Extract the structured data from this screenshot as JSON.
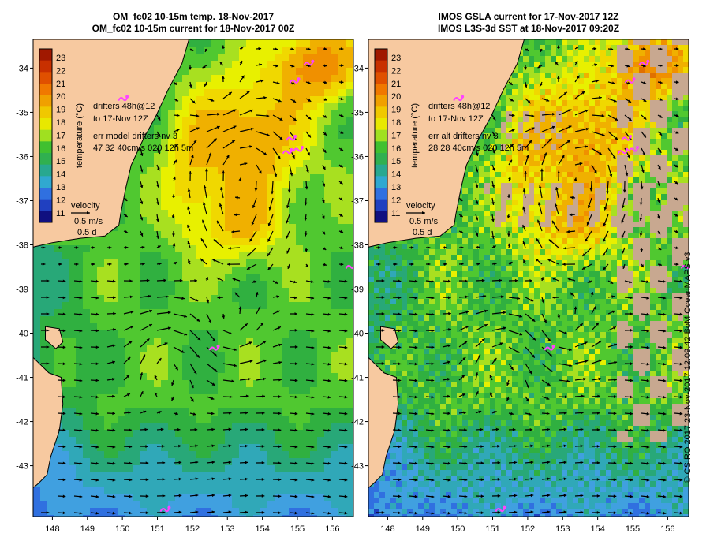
{
  "panels": [
    {
      "title_line1": "OM_fc02 10-15m temp. 18-Nov-2017",
      "title_line2": "OM_fc02 10-15m current for 18-Nov-2017 00Z",
      "drifters_line1": "drifters 48h@12",
      "drifters_line2": "to 17-Nov 12Z",
      "err_line1": "err model drifters nv 3",
      "err_line2": "47 32 40cm/s 020 12h 5m",
      "velocity_label": "velocity",
      "velocity_scale": "0.5 m/s",
      "velocity_time": "0.5 d",
      "colorbar_label": "temperature (°C)",
      "type": "model"
    },
    {
      "title_line1": "IMOS GSLA current for 17-Nov-2017 12Z",
      "title_line2": "IMOS L3S-3d SST at 18-Nov-2017 09:20Z",
      "drifters_line1": "drifters 48h@12",
      "drifters_line2": "to 17-Nov 12Z",
      "err_line1": "err alt drifters nv 3",
      "err_line2": "28 28 40cm/s 020 12h 5m",
      "velocity_label": "velocity",
      "velocity_scale": "0.5 m/s",
      "velocity_time": "0.5 d",
      "colorbar_label": "temperature (°C)",
      "type": "satellite"
    }
  ],
  "colorbar_ticks": [
    "23",
    "22",
    "21",
    "20",
    "19",
    "18",
    "17",
    "16",
    "15",
    "14",
    "13",
    "12",
    "11"
  ],
  "lat_labels": [
    "-34",
    "-35",
    "-36",
    "-37",
    "-38",
    "-39",
    "-40",
    "-41",
    "-42",
    "-43"
  ],
  "lon_labels": [
    "148",
    "149",
    "150",
    "151",
    "152",
    "153",
    "154",
    "155",
    "156"
  ],
  "credit": "© CSIRO 2017  23-Nov-2017 12:09:42 BoM OceanMAPS v3",
  "colors": {
    "land": "#f7c9a0",
    "coast": "#000000",
    "no_data": "#c8a890",
    "drifter": "#ff44ff",
    "scale": [
      "#f0e6dc",
      "#d05000",
      "#e06000",
      "#f08000",
      "#f0a000",
      "#f0c800",
      "#f0e000",
      "#c8e800",
      "#60d020",
      "#30b030",
      "#20a870",
      "#20a0c0",
      "#3080e0",
      "#2040d0",
      "#101090"
    ]
  }
}
